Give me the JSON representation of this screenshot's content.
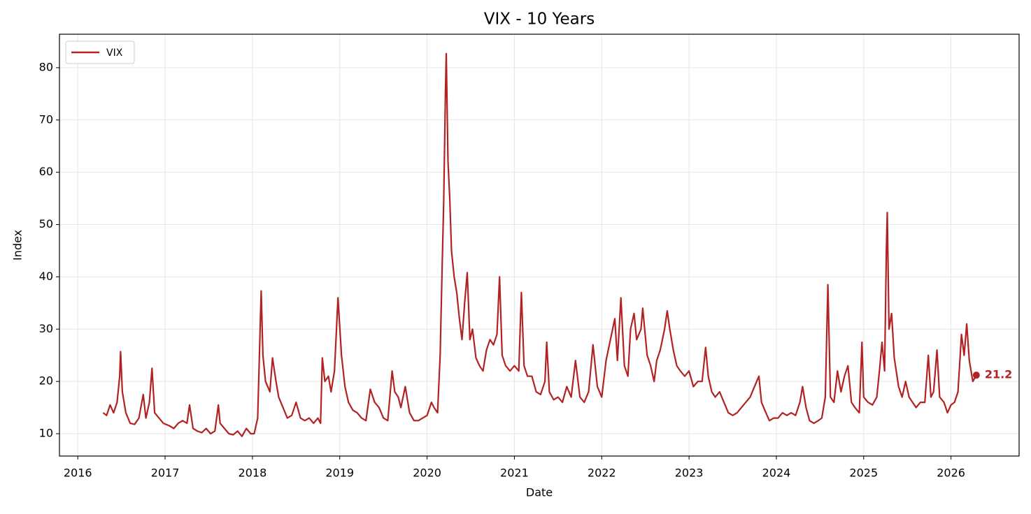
{
  "chart_data": {
    "type": "line",
    "title": "VIX - 10 Years",
    "x_label": "Date",
    "y_label": "Index",
    "x": [
      2016.29,
      2016.33,
      2016.37,
      2016.41,
      2016.45,
      2016.48,
      2016.49,
      2016.51,
      2016.55,
      2016.6,
      2016.65,
      2016.7,
      2016.75,
      2016.78,
      2016.82,
      2016.85,
      2016.88,
      2016.93,
      2016.98,
      2017.05,
      2017.1,
      2017.15,
      2017.2,
      2017.25,
      2017.28,
      2017.32,
      2017.37,
      2017.42,
      2017.47,
      2017.52,
      2017.57,
      2017.61,
      2017.63,
      2017.68,
      2017.73,
      2017.78,
      2017.83,
      2017.88,
      2017.93,
      2017.98,
      2018.02,
      2018.06,
      2018.1,
      2018.12,
      2018.15,
      2018.2,
      2018.23,
      2018.27,
      2018.3,
      2018.35,
      2018.4,
      2018.45,
      2018.5,
      2018.55,
      2018.6,
      2018.65,
      2018.7,
      2018.75,
      2018.78,
      2018.8,
      2018.83,
      2018.87,
      2018.9,
      2018.94,
      2018.98,
      2019.02,
      2019.06,
      2019.1,
      2019.15,
      2019.2,
      2019.25,
      2019.3,
      2019.35,
      2019.4,
      2019.45,
      2019.5,
      2019.55,
      2019.6,
      2019.63,
      2019.67,
      2019.7,
      2019.75,
      2019.8,
      2019.85,
      2019.9,
      2019.95,
      2020.0,
      2020.05,
      2020.08,
      2020.12,
      2020.15,
      2020.17,
      2020.19,
      2020.21,
      2020.22,
      2020.24,
      2020.26,
      2020.28,
      2020.31,
      2020.34,
      2020.37,
      2020.4,
      2020.43,
      2020.46,
      2020.49,
      2020.52,
      2020.56,
      2020.6,
      2020.64,
      2020.68,
      2020.72,
      2020.76,
      2020.8,
      2020.83,
      2020.86,
      2020.9,
      2020.95,
      2021.0,
      2021.05,
      2021.08,
      2021.11,
      2021.15,
      2021.2,
      2021.25,
      2021.3,
      2021.35,
      2021.37,
      2021.4,
      2021.45,
      2021.5,
      2021.55,
      2021.6,
      2021.65,
      2021.7,
      2021.75,
      2021.8,
      2021.85,
      2021.9,
      2021.95,
      2022.0,
      2022.05,
      2022.1,
      2022.15,
      2022.18,
      2022.22,
      2022.26,
      2022.3,
      2022.33,
      2022.37,
      2022.4,
      2022.45,
      2022.47,
      2022.52,
      2022.56,
      2022.6,
      2022.63,
      2022.67,
      2022.72,
      2022.75,
      2022.78,
      2022.82,
      2022.86,
      2022.9,
      2022.95,
      2023.0,
      2023.05,
      2023.1,
      2023.15,
      2023.19,
      2023.22,
      2023.26,
      2023.3,
      2023.35,
      2023.4,
      2023.45,
      2023.5,
      2023.55,
      2023.6,
      2023.65,
      2023.7,
      2023.75,
      2023.8,
      2023.83,
      2023.88,
      2023.92,
      2023.97,
      2024.02,
      2024.07,
      2024.12,
      2024.17,
      2024.22,
      2024.27,
      2024.3,
      2024.34,
      2024.38,
      2024.43,
      2024.48,
      2024.52,
      2024.56,
      2024.59,
      2024.62,
      2024.66,
      2024.7,
      2024.74,
      2024.78,
      2024.82,
      2024.86,
      2024.9,
      2024.95,
      2024.98,
      2025.0,
      2025.05,
      2025.1,
      2025.15,
      2025.18,
      2025.21,
      2025.24,
      2025.26,
      2025.27,
      2025.29,
      2025.32,
      2025.35,
      2025.4,
      2025.44,
      2025.48,
      2025.52,
      2025.56,
      2025.6,
      2025.65,
      2025.7,
      2025.74,
      2025.77,
      2025.8,
      2025.84,
      2025.87,
      2025.92,
      2025.96,
      2026.0,
      2026.04,
      2026.08,
      2026.12,
      2026.15,
      2026.18,
      2026.21,
      2026.25,
      2026.29
    ],
    "series": [
      {
        "name": "VIX",
        "color": "#b22222",
        "values": [
          14,
          13.5,
          15.5,
          14,
          16,
          21,
          25.7,
          18,
          14,
          12,
          11.8,
          13,
          17.5,
          13,
          16,
          22.5,
          14,
          13,
          12,
          11.5,
          11,
          12,
          12.5,
          12,
          15.5,
          11,
          10.5,
          10.2,
          11,
          10,
          10.5,
          15.5,
          12,
          11,
          10,
          9.8,
          10.5,
          9.5,
          11,
          10,
          10,
          13,
          37.3,
          25,
          20,
          18,
          24.5,
          20,
          17,
          15,
          13,
          13.5,
          16,
          13,
          12.5,
          13,
          12,
          13,
          12,
          24.5,
          20,
          21,
          18,
          22,
          36,
          25,
          19,
          16,
          14.5,
          14,
          13,
          12.5,
          18.5,
          16,
          15,
          13,
          12.5,
          22,
          18,
          17,
          15,
          19,
          14,
          12.5,
          12.5,
          13,
          13.5,
          16,
          15,
          14,
          25,
          40,
          54,
          75,
          82.7,
          62,
          55,
          45,
          40,
          37,
          32,
          28,
          35,
          40.8,
          28,
          30,
          24.5,
          23,
          22,
          26,
          28,
          27,
          29,
          40,
          25,
          23,
          22,
          23,
          22,
          37,
          23,
          21,
          21,
          18,
          17.5,
          20,
          27.5,
          18,
          16.5,
          17,
          16,
          19,
          17,
          24,
          17,
          16,
          18,
          27,
          19,
          17,
          24,
          28,
          32,
          24,
          36,
          23,
          21,
          30,
          33,
          28,
          30,
          34,
          25,
          23,
          20,
          24,
          26,
          30,
          33.5,
          30,
          26,
          23,
          22,
          21,
          22,
          19,
          20,
          20,
          26.5,
          21,
          18,
          17,
          18,
          16,
          14,
          13.5,
          14,
          15,
          16,
          17,
          19,
          21,
          16,
          14,
          12.5,
          13,
          13,
          14,
          13.5,
          14,
          13.5,
          16,
          19,
          15,
          12.5,
          12,
          12.5,
          13,
          17,
          38.5,
          17,
          16,
          22,
          18,
          21,
          23,
          16,
          15,
          14,
          27.5,
          17,
          16,
          15.5,
          17,
          22,
          27.5,
          22,
          45,
          52.3,
          30,
          33,
          24.5,
          19,
          17,
          20,
          17,
          16,
          15,
          16,
          16,
          25,
          17,
          18,
          26,
          17,
          16,
          14,
          15.5,
          16,
          18,
          29,
          25,
          31,
          24,
          20,
          21.2
        ]
      }
    ],
    "xlim": [
      2015.79,
      2026.78
    ],
    "xticks": [
      2016,
      2017,
      2018,
      2019,
      2020,
      2021,
      2022,
      2023,
      2024,
      2025,
      2026
    ],
    "ylim": [
      5.73,
      86.4
    ],
    "yticks": [
      10,
      20,
      30,
      40,
      50,
      60,
      70,
      80
    ],
    "grid": true,
    "legend": "upper left"
  }
}
